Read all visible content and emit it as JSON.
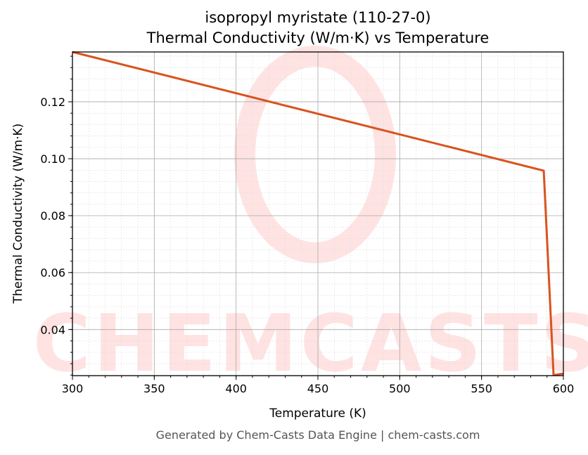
{
  "chart_data": {
    "type": "line",
    "title": "isopropyl myristate (110-27-0)",
    "subtitle": "Thermal Conductivity (W/m·K) vs Temperature",
    "xlabel": "Temperature (K)",
    "ylabel": "Thermal Conductivity (W/m·K)",
    "xlim": [
      300,
      600
    ],
    "ylim": [
      0.0238,
      0.1375
    ],
    "xticks": [
      300,
      350,
      400,
      450,
      500,
      550,
      600
    ],
    "yticks": [
      0.04,
      0.06,
      0.08,
      0.1,
      0.12
    ],
    "ytick_labels": [
      "0.04",
      "0.06",
      "0.08",
      "0.10",
      "0.12"
    ],
    "grid": true,
    "series": [
      {
        "color": "#d9531e",
        "x": [
          300,
          588,
          594,
          600
        ],
        "y": [
          0.1375,
          0.0958,
          0.024,
          0.0245
        ]
      }
    ]
  },
  "watermark": "CHEMCASTS",
  "footer": "Generated by Chem-Casts Data Engine | chem-casts.com"
}
